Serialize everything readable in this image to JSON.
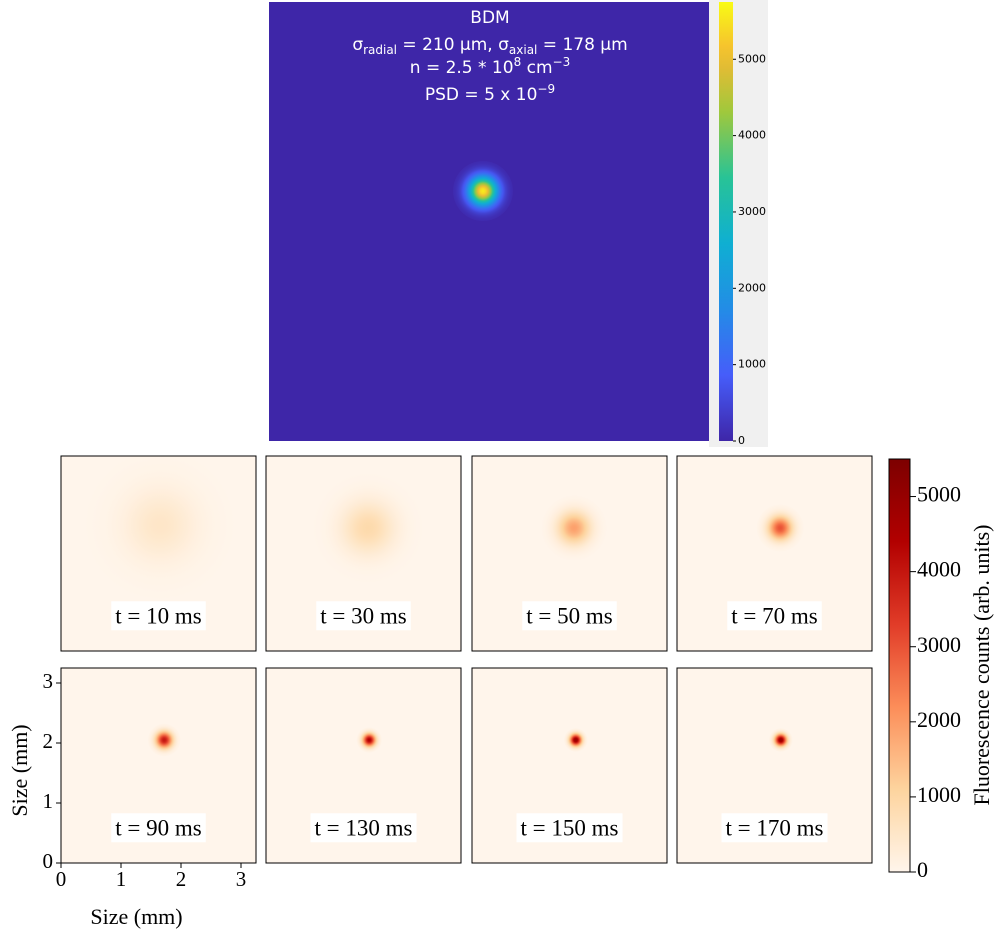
{
  "chart_data": [
    {
      "type": "heatmap",
      "title": "BDM",
      "annotations": [
        [
          {
            "text": "σ"
          },
          {
            "text": "radial",
            "script": "sub"
          },
          {
            "text": " = 210 µm, σ"
          },
          {
            "text": "axial",
            "script": "sub"
          },
          {
            "text": " = 178 µm"
          }
        ],
        [
          {
            "text": "n = 2.5 * 10"
          },
          {
            "text": "8",
            "script": "sup"
          },
          {
            "text": " cm"
          },
          {
            "text": "−3",
            "script": "sup"
          }
        ],
        [
          {
            "text": "PSD = 5 x 10"
          },
          {
            "text": "−9",
            "script": "sup"
          }
        ]
      ],
      "peak": 5600,
      "colormap": "parula",
      "clim": [
        0,
        5750
      ],
      "cticks": [
        0,
        1000,
        2000,
        3000,
        4000,
        5000
      ]
    },
    {
      "type": "heatmap-grid",
      "xlabel": "Size (mm)",
      "ylabel": "Size (mm)",
      "xlim": [
        0,
        3.25
      ],
      "ylim": [
        0,
        3.25
      ],
      "xticks": [
        0,
        1,
        2,
        3
      ],
      "yticks": [
        0,
        1,
        2,
        3
      ],
      "colormap": "OrRd",
      "clim": [
        0,
        5500
      ],
      "cticks": [
        0,
        1000,
        2000,
        3000,
        4000,
        5000
      ],
      "colorbar_label": "Fluorescence counts (arb. units)",
      "panels": [
        {
          "label": "t = 10 ms",
          "peak": 500,
          "x": 1.65,
          "y": 2.1,
          "width": 0.42
        },
        {
          "label": "t = 30 ms",
          "peak": 900,
          "x": 1.7,
          "y": 2.05,
          "width": 0.3
        },
        {
          "label": "t = 50 ms",
          "peak": 1900,
          "x": 1.7,
          "y": 2.05,
          "width": 0.18
        },
        {
          "label": "t = 70 ms",
          "peak": 3000,
          "x": 1.72,
          "y": 2.05,
          "width": 0.13
        },
        {
          "label": "t = 90 ms",
          "peak": 4000,
          "x": 1.72,
          "y": 2.05,
          "width": 0.09
        },
        {
          "label": "t = 130 ms",
          "peak": 4500,
          "x": 1.72,
          "y": 2.05,
          "width": 0.07
        },
        {
          "label": "t = 150 ms",
          "peak": 5000,
          "x": 1.73,
          "y": 2.05,
          "width": 0.065
        },
        {
          "label": "t = 170 ms",
          "peak": 5000,
          "x": 1.73,
          "y": 2.05,
          "width": 0.065
        }
      ]
    }
  ]
}
